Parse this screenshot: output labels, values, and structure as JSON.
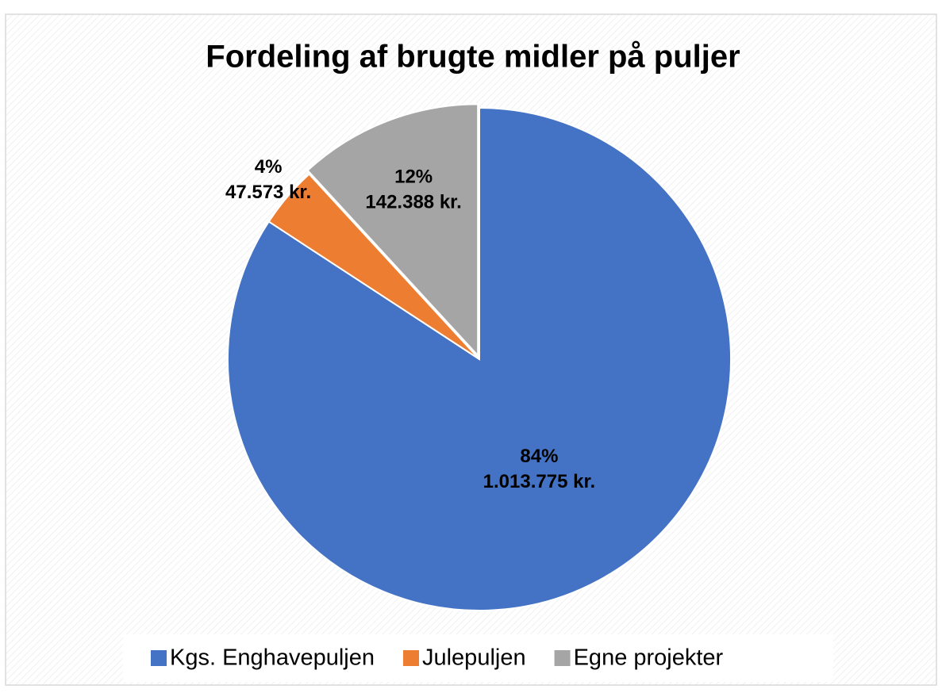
{
  "chart_data": {
    "type": "pie",
    "title": "Fordeling af brugte midler på puljer",
    "categories": [
      "Kgs. Enghavepuljen",
      "Julepuljen",
      "Egne projekter"
    ],
    "values": [
      1013775,
      47573,
      142388
    ],
    "value_labels": [
      "1.013.775 kr.",
      "47.573 kr.",
      "142.388 kr."
    ],
    "percent_values": [
      84,
      4,
      12
    ],
    "percent_labels": [
      "84%",
      "4%",
      "12%"
    ],
    "colors": [
      "#4472c4",
      "#ed7d31",
      "#a5a5a5"
    ],
    "legend": "bottom"
  }
}
